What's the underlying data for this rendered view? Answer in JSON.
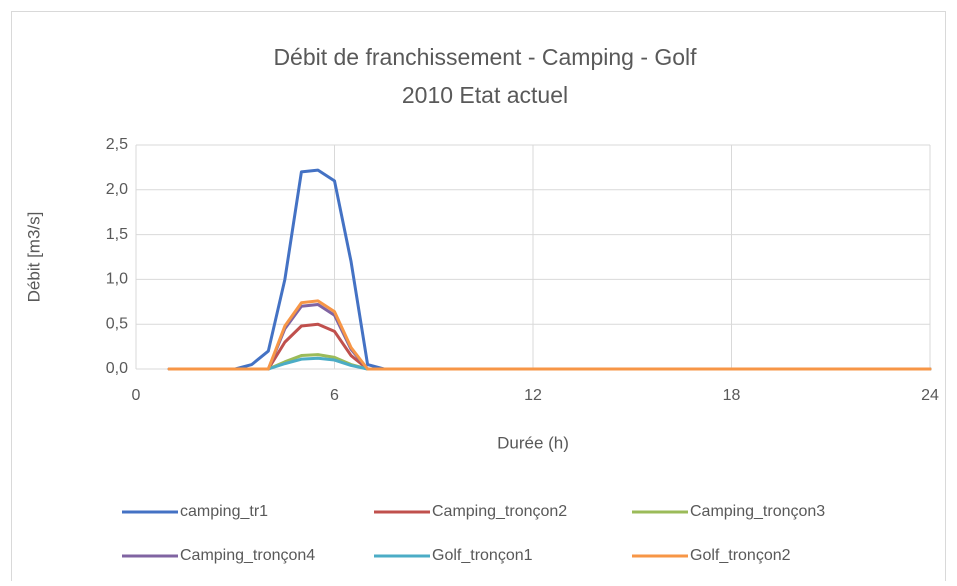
{
  "chart_data": {
    "type": "line",
    "title": "Débit de franchissement - Camping - Golf",
    "subtitle": "2010 Etat actuel",
    "x_label": "Durée (h)",
    "y_label": "Débit [m3/s]",
    "x": [
      1,
      3,
      3.5,
      4,
      4.5,
      5,
      5.5,
      6,
      6.5,
      7,
      7.5,
      8,
      24
    ],
    "series": [
      {
        "name": "camping_tr1",
        "color": "#4472c4",
        "values": [
          0,
          0,
          0.05,
          0.2,
          1.0,
          2.2,
          2.22,
          2.1,
          1.2,
          0.05,
          0,
          0,
          0
        ]
      },
      {
        "name": "Camping_tronçon2",
        "color": "#c0504d",
        "values": [
          null,
          null,
          null,
          0,
          0.3,
          0.48,
          0.5,
          0.42,
          0.15,
          0,
          0,
          0,
          0
        ]
      },
      {
        "name": "Camping_tronçon3",
        "color": "#9bbb59",
        "values": [
          null,
          null,
          null,
          0,
          0.08,
          0.15,
          0.16,
          0.13,
          0.05,
          0,
          0,
          0,
          0
        ]
      },
      {
        "name": "Camping_tronçon4",
        "color": "#8064a2",
        "values": [
          null,
          null,
          null,
          0,
          0.45,
          0.7,
          0.72,
          0.6,
          0.22,
          0,
          0,
          0,
          0
        ]
      },
      {
        "name": "Golf_tronçon1",
        "color": "#4bacc6",
        "values": [
          null,
          null,
          null,
          0,
          0.06,
          0.11,
          0.12,
          0.1,
          0.04,
          0,
          0,
          0,
          0
        ]
      },
      {
        "name": "Golf_tronçon2",
        "color": "#f79646",
        "values": [
          0,
          0,
          0,
          0,
          0.48,
          0.74,
          0.76,
          0.64,
          0.24,
          0,
          0,
          0,
          0
        ]
      }
    ],
    "xlim": [
      0,
      24
    ],
    "xticks": [
      0,
      6,
      12,
      18,
      24
    ],
    "ylim": [
      0,
      2.5
    ],
    "yticks": [
      {
        "value": 0,
        "label": "0,0"
      },
      {
        "value": 0.5,
        "label": "0,5"
      },
      {
        "value": 1,
        "label": "1,0"
      },
      {
        "value": 1.5,
        "label": "1,5"
      },
      {
        "value": 2,
        "label": "2,0"
      },
      {
        "value": 2.5,
        "label": "2,5"
      }
    ],
    "grid": true,
    "legend": "bottom"
  }
}
